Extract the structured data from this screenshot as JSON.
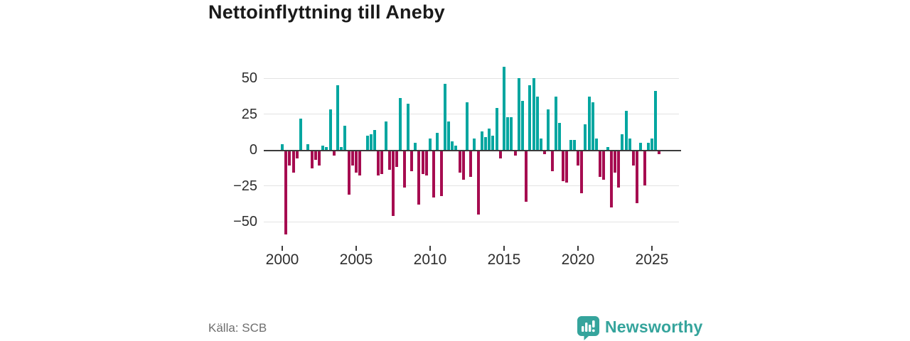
{
  "title": "Nettoinflyttning till Aneby",
  "source": "Källa: SCB",
  "brand": {
    "name": "Newsworthy",
    "color": "#35A49C"
  },
  "chart_data": {
    "type": "bar",
    "frequency": "quarterly",
    "title": "Nettoinflyttning till Aneby",
    "xlabel": "",
    "ylabel": "",
    "grid": "horizontal",
    "ylim": [
      -62,
      62
    ],
    "yticks": [
      50,
      25,
      0,
      -25,
      -50
    ],
    "yticklabels": [
      "50",
      "25",
      "0",
      "−25",
      "−50"
    ],
    "xticks": [
      2000,
      2005,
      2010,
      2015,
      2020,
      2025
    ],
    "colors": {
      "positive": "#00A6A0",
      "negative": "#A60C50"
    },
    "categories": [
      "2000 Q1",
      "2000 Q2",
      "2000 Q3",
      "2000 Q4",
      "2001 Q1",
      "2001 Q2",
      "2001 Q3",
      "2001 Q4",
      "2002 Q1",
      "2002 Q2",
      "2002 Q3",
      "2002 Q4",
      "2003 Q1",
      "2003 Q2",
      "2003 Q3",
      "2003 Q4",
      "2004 Q1",
      "2004 Q2",
      "2004 Q3",
      "2004 Q4",
      "2005 Q1",
      "2005 Q2",
      "2005 Q3",
      "2005 Q4",
      "2006 Q1",
      "2006 Q2",
      "2006 Q3",
      "2006 Q4",
      "2007 Q1",
      "2007 Q2",
      "2007 Q3",
      "2007 Q4",
      "2008 Q1",
      "2008 Q2",
      "2008 Q3",
      "2008 Q4",
      "2009 Q1",
      "2009 Q2",
      "2009 Q3",
      "2009 Q4",
      "2010 Q1",
      "2010 Q2",
      "2010 Q3",
      "2010 Q4",
      "2011 Q1",
      "2011 Q2",
      "2011 Q3",
      "2011 Q4",
      "2012 Q1",
      "2012 Q2",
      "2012 Q3",
      "2012 Q4",
      "2013 Q1",
      "2013 Q2",
      "2013 Q3",
      "2013 Q4",
      "2014 Q1",
      "2014 Q2",
      "2014 Q3",
      "2014 Q4",
      "2015 Q1",
      "2015 Q2",
      "2015 Q3",
      "2015 Q4",
      "2016 Q1",
      "2016 Q2",
      "2016 Q3",
      "2016 Q4",
      "2017 Q1",
      "2017 Q2",
      "2017 Q3",
      "2017 Q4",
      "2018 Q1",
      "2018 Q2",
      "2018 Q3",
      "2018 Q4",
      "2019 Q1",
      "2019 Q2",
      "2019 Q3",
      "2019 Q4",
      "2020 Q1",
      "2020 Q2",
      "2020 Q3",
      "2020 Q4",
      "2021 Q1",
      "2021 Q2",
      "2021 Q3",
      "2021 Q4",
      "2022 Q1",
      "2022 Q2",
      "2022 Q3",
      "2022 Q4",
      "2023 Q1",
      "2023 Q2",
      "2023 Q3",
      "2023 Q4",
      "2024 Q1",
      "2024 Q2",
      "2024 Q3",
      "2024 Q4",
      "2025 Q1",
      "2025 Q2",
      "2025 Q3"
    ],
    "values": [
      4,
      -58,
      -10,
      -15,
      -5,
      22,
      0,
      4,
      -12,
      -6,
      -10,
      3,
      2,
      28,
      -3,
      45,
      2,
      17,
      -30,
      -10,
      -15,
      -17,
      0,
      10,
      11,
      14,
      -17,
      -16,
      20,
      -13,
      -45,
      -11,
      36,
      -25,
      32,
      -14,
      5,
      -37,
      -16,
      -17,
      8,
      -32,
      12,
      -31,
      46,
      20,
      6,
      3,
      -15,
      -20,
      33,
      -18,
      8,
      -44,
      13,
      9,
      15,
      10,
      29,
      -5,
      58,
      23,
      23,
      -3,
      50,
      34,
      -35,
      45,
      50,
      37,
      8,
      -2,
      28,
      -14,
      37,
      19,
      -21,
      -22,
      7,
      7,
      -10,
      -29,
      18,
      37,
      33,
      8,
      -18,
      -20,
      2,
      -39,
      -15,
      -25,
      11,
      27,
      8,
      -10,
      -36,
      5,
      -24,
      5,
      8,
      41,
      -2
    ]
  }
}
